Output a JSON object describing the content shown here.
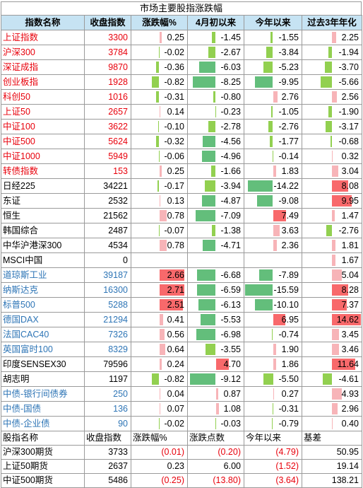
{
  "title": "市场主要股指涨跌幅",
  "headers": [
    "指数名称",
    "收盘指数",
    "涨跌幅%",
    "4月初以来",
    "今年以来",
    "过去3年年化"
  ],
  "colors": {
    "red": "#e8000b",
    "blue": "#2e75b6",
    "black": "#000000",
    "pos_bar": "#f7b4b8",
    "pos_bar_strong": "#f8696b",
    "neg_bar": "#92d050",
    "neg_bar_strong": "#63be7b"
  },
  "indices": [
    {
      "name": "上证指数",
      "close": "3300",
      "chg": "0.25",
      "apr": "-1.45",
      "ytd": "-1.55",
      "y3": "2.25",
      "color": "red"
    },
    {
      "name": "沪深300",
      "close": "3784",
      "chg": "-0.02",
      "apr": "-2.67",
      "ytd": "-3.84",
      "y3": "-1.94",
      "color": "red"
    },
    {
      "name": "深证成指",
      "close": "9870",
      "chg": "-0.36",
      "apr": "-6.03",
      "ytd": "-5.23",
      "y3": "-3.70",
      "color": "red"
    },
    {
      "name": "创业板指",
      "close": "1928",
      "chg": "-0.82",
      "apr": "-8.25",
      "ytd": "-9.95",
      "y3": "-5.66",
      "color": "red"
    },
    {
      "name": "科创50",
      "close": "1016",
      "chg": "-0.31",
      "apr": "-0.80",
      "ytd": "2.76",
      "y3": "2.56",
      "color": "red"
    },
    {
      "name": "上证50",
      "close": "2657",
      "chg": "0.14",
      "apr": "-0.23",
      "ytd": "-1.05",
      "y3": "-1.90",
      "color": "red"
    },
    {
      "name": "中证100",
      "close": "3622",
      "chg": "-0.10",
      "apr": "-2.78",
      "ytd": "-2.76",
      "y3": "-3.17",
      "color": "red"
    },
    {
      "name": "中证500",
      "close": "5624",
      "chg": "-0.32",
      "apr": "-4.56",
      "ytd": "-1.77",
      "y3": "-0.68",
      "color": "red"
    },
    {
      "name": "中证1000",
      "close": "5949",
      "chg": "-0.06",
      "apr": "-4.96",
      "ytd": "-0.14",
      "y3": "0.32",
      "color": "red"
    },
    {
      "name": "转债指数",
      "close": "153",
      "chg": "0.25",
      "apr": "-1.66",
      "ytd": "1.83",
      "y3": "3.04",
      "color": "red"
    },
    {
      "name": "日经225",
      "close": "34221",
      "chg": "-0.17",
      "apr": "-3.94",
      "ytd": "-14.22",
      "y3": "8.08",
      "color": "black"
    },
    {
      "name": "东证",
      "close": "2532",
      "chg": "0.13",
      "apr": "-4.87",
      "ytd": "-9.08",
      "y3": "9.95",
      "color": "black"
    },
    {
      "name": "恒生",
      "close": "21562",
      "chg": "0.78",
      "apr": "-7.09",
      "ytd": "7.49",
      "y3": "1.47",
      "color": "black"
    },
    {
      "name": "韩国综合",
      "close": "2487",
      "chg": "-0.07",
      "apr": "-1.38",
      "ytd": "3.63",
      "y3": "-2.76",
      "color": "black"
    },
    {
      "name": "中华沪港深300",
      "close": "4534",
      "chg": "0.78",
      "apr": "-4.71",
      "ytd": "2.36",
      "y3": "1.81",
      "color": "black"
    },
    {
      "name": "MSCI中国",
      "close": "0",
      "chg": "",
      "apr": "",
      "ytd": "",
      "y3": "1.67",
      "color": "black"
    },
    {
      "name": "道琼斯工业",
      "close": "39187",
      "chg": "2.66",
      "apr": "-6.68",
      "ytd": "-7.89",
      "y3": "5.04",
      "color": "blue"
    },
    {
      "name": "纳斯达克",
      "close": "16300",
      "chg": "2.71",
      "apr": "-6.59",
      "ytd": "-15.59",
      "y3": "8.28",
      "color": "blue"
    },
    {
      "name": "标普500",
      "close": "5288",
      "chg": "2.51",
      "apr": "-6.13",
      "ytd": "-10.10",
      "y3": "7.37",
      "color": "blue"
    },
    {
      "name": "德国DAX",
      "close": "21294",
      "chg": "0.41",
      "apr": "-5.53",
      "ytd": "6.95",
      "y3": "14.62",
      "color": "blue"
    },
    {
      "name": "法国CAC40",
      "close": "7326",
      "chg": "0.56",
      "apr": "-6.98",
      "ytd": "-0.74",
      "y3": "3.45",
      "color": "blue"
    },
    {
      "name": "英国富时100",
      "close": "8329",
      "chg": "0.64",
      "apr": "-3.55",
      "ytd": "1.90",
      "y3": "3.46",
      "color": "blue"
    },
    {
      "name": "印度SENSEX30",
      "close": "79596",
      "chg": "0.24",
      "apr": "4.70",
      "ytd": "1.86",
      "y3": "11.64",
      "color": "black"
    },
    {
      "name": "胡志明",
      "close": "1197",
      "chg": "-0.82",
      "apr": "-9.12",
      "ytd": "-5.50",
      "y3": "-4.61",
      "color": "black"
    },
    {
      "name": "中债-银行间债券",
      "close": "250",
      "chg": "0.04",
      "apr": "0.87",
      "ytd": "0.27",
      "y3": "4.93",
      "color": "blue"
    },
    {
      "name": "中债-国债",
      "close": "136",
      "chg": "0.07",
      "apr": "1.08",
      "ytd": "-0.31",
      "y3": "2.96",
      "color": "blue"
    },
    {
      "name": "中债-企业债",
      "close": "90",
      "chg": "-0.02",
      "apr": "-0.03",
      "ytd": "-0.79",
      "y3": "0.40",
      "color": "blue"
    }
  ],
  "futures_headers": [
    "股指名称",
    "收盘指数",
    "涨跌幅%",
    "涨跌点数",
    "今年以来",
    "基差"
  ],
  "futures": [
    {
      "name": "沪深300期货",
      "close": "3733",
      "chg": "(0.01)",
      "pts": "(0.20)",
      "ytd": "(4.79)",
      "basis": "50.95"
    },
    {
      "name": "上证50期货",
      "close": "2637",
      "chg": "0.23",
      "pts": "6.00",
      "ytd": "(1.52)",
      "basis": "19.14"
    },
    {
      "name": "中证500期货",
      "close": "5486",
      "chg": "(0.25)",
      "pts": "(13.80)",
      "ytd": "(3.64)",
      "basis": "138.21"
    }
  ]
}
